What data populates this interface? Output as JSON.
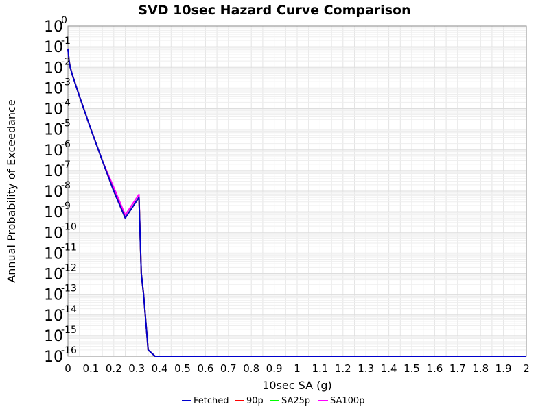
{
  "chart_data": {
    "type": "line",
    "title": "SVD 10sec Hazard Curve Comparison",
    "xlabel": "10sec SA (g)",
    "ylabel": "Annual Probability of Exceedance",
    "xlim": [
      0,
      2
    ],
    "ylim_exponent": [
      -16,
      0
    ],
    "yscale": "log",
    "x_ticks": [
      "0",
      "0.1",
      "0.2",
      "0.3",
      "0.4",
      "0.5",
      "0.6",
      "0.7",
      "0.8",
      "0.9",
      "1",
      "1.1",
      "1.2",
      "1.3",
      "1.4",
      "1.5",
      "1.6",
      "1.7",
      "1.8",
      "1.9",
      "2"
    ],
    "y_tick_base": "10",
    "y_tick_exponents": [
      "0",
      "-1",
      "-2",
      "-3",
      "-4",
      "-5",
      "-6",
      "-7",
      "-8",
      "-9",
      "-10",
      "-11",
      "-12",
      "-13",
      "-14",
      "-15",
      "-16"
    ],
    "grid": true,
    "legend_position": "bottom",
    "series": [
      {
        "name": "SA100p",
        "color": "#ff00ff",
        "x": [
          0.0,
          0.005,
          0.01,
          0.02,
          0.05,
          0.1,
          0.15,
          0.2,
          0.25,
          0.31,
          0.32,
          0.33,
          0.35,
          0.38,
          0.4,
          0.5,
          1.0,
          1.5,
          2.0
        ],
        "y": [
          0.08,
          0.02,
          0.01,
          0.004,
          0.0004,
          1e-05,
          3e-07,
          1.5e-08,
          7e-10,
          7e-09,
          1e-12,
          1e-13,
          2e-16,
          1e-16,
          1e-16,
          1e-16,
          1e-16,
          1e-16,
          1e-16
        ]
      },
      {
        "name": "SA25p",
        "color": "#00ff00",
        "x": [
          0.0,
          0.005,
          0.01,
          0.02,
          0.05,
          0.1,
          0.15,
          0.2,
          0.25,
          0.31,
          0.32,
          0.33,
          0.35,
          0.38,
          0.4,
          0.5,
          1.0,
          1.5,
          2.0
        ],
        "y": [
          0.08,
          0.02,
          0.01,
          0.004,
          0.0004,
          1e-05,
          3e-07,
          1e-08,
          5e-10,
          5e-09,
          1e-12,
          1e-13,
          2e-16,
          1e-16,
          1e-16,
          1e-16,
          1e-16,
          1e-16,
          1e-16
        ]
      },
      {
        "name": "90p",
        "color": "#ff0000",
        "x": [
          0.0,
          0.005,
          0.01,
          0.02,
          0.05,
          0.1,
          0.15,
          0.2,
          0.25,
          0.31,
          0.32,
          0.33,
          0.35,
          0.38,
          0.4,
          0.5,
          1.0,
          1.5,
          2.0
        ],
        "y": [
          0.08,
          0.02,
          0.01,
          0.004,
          0.0004,
          1e-05,
          3e-07,
          1e-08,
          5e-10,
          5e-09,
          1e-12,
          1e-13,
          2e-16,
          1e-16,
          1e-16,
          1e-16,
          1e-16,
          1e-16,
          1e-16
        ]
      },
      {
        "name": "Fetched",
        "color": "#0000cc",
        "x": [
          0.0,
          0.005,
          0.01,
          0.02,
          0.05,
          0.1,
          0.15,
          0.2,
          0.25,
          0.31,
          0.32,
          0.33,
          0.35,
          0.38,
          0.4,
          0.5,
          1.0,
          1.5,
          2.0
        ],
        "y": [
          0.08,
          0.02,
          0.01,
          0.004,
          0.0004,
          1e-05,
          3e-07,
          1e-08,
          5e-10,
          5e-09,
          1e-12,
          1e-13,
          2e-16,
          1e-16,
          1e-16,
          1e-16,
          1e-16,
          1e-16,
          1e-16
        ]
      }
    ],
    "legend_order": [
      "Fetched",
      "90p",
      "SA25p",
      "SA100p"
    ]
  }
}
